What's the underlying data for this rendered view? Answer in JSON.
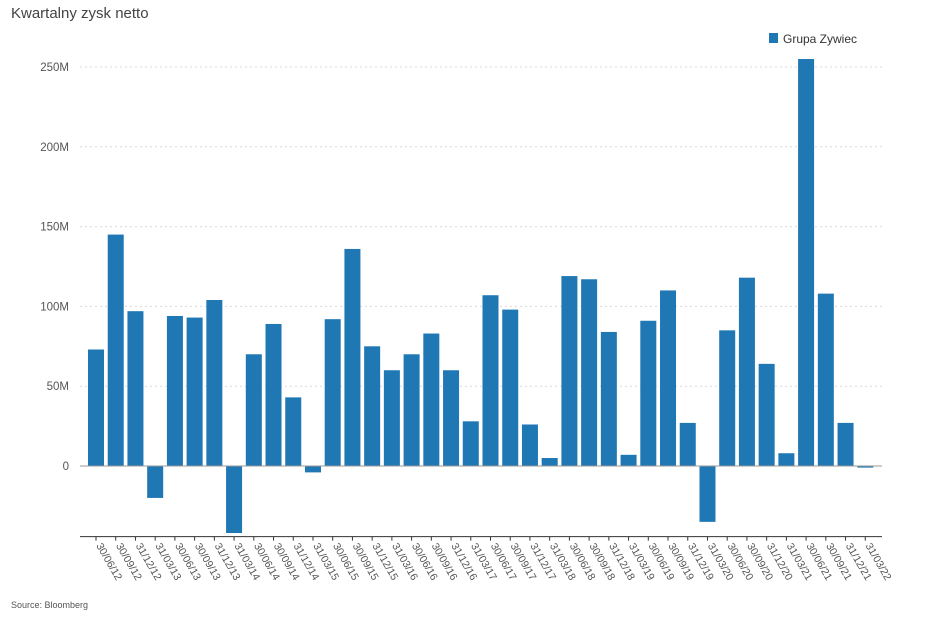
{
  "chart_data": {
    "type": "bar",
    "title": "Kwartalny zysk netto",
    "source": "Source: Bloomberg",
    "legend": {
      "position": "top-right"
    },
    "colors": {
      "bar": "#1f77b4",
      "grid": "#d9d9d9",
      "axis": "#333333"
    },
    "grid": true,
    "xlabel": "",
    "ylabel": "",
    "ylim": [
      -43,
      260
    ],
    "yticks": [
      {
        "value": 0,
        "label": "0"
      },
      {
        "value": 50,
        "label": "50M"
      },
      {
        "value": 100,
        "label": "100M"
      },
      {
        "value": 150,
        "label": "150M"
      },
      {
        "value": 200,
        "label": "200M"
      },
      {
        "value": 250,
        "label": "250M"
      }
    ],
    "categories": [
      "30/06/12",
      "30/09/12",
      "31/12/12",
      "31/03/13",
      "30/06/13",
      "30/09/13",
      "31/12/13",
      "31/03/14",
      "30/06/14",
      "30/09/14",
      "31/12/14",
      "31/03/15",
      "30/06/15",
      "30/09/15",
      "31/12/15",
      "31/03/16",
      "30/06/16",
      "30/09/16",
      "31/12/16",
      "31/03/17",
      "30/06/17",
      "30/09/17",
      "31/12/17",
      "31/03/18",
      "30/06/18",
      "30/09/18",
      "31/12/18",
      "31/03/19",
      "30/06/19",
      "30/09/19",
      "31/12/19",
      "31/03/20",
      "30/06/20",
      "30/09/20",
      "31/12/20",
      "31/03/21",
      "30/06/21",
      "30/09/21",
      "31/12/21",
      "31/03/22"
    ],
    "series": [
      {
        "name": "Grupa Zywiec",
        "values": [
          73,
          145,
          97,
          -20,
          94,
          93,
          104,
          -42,
          70,
          89,
          43,
          -4,
          92,
          136,
          75,
          60,
          70,
          83,
          60,
          28,
          107,
          98,
          26,
          5,
          119,
          117,
          84,
          7,
          91,
          110,
          27,
          -35,
          85,
          118,
          64,
          8,
          255,
          108,
          27,
          -1
        ]
      }
    ]
  }
}
